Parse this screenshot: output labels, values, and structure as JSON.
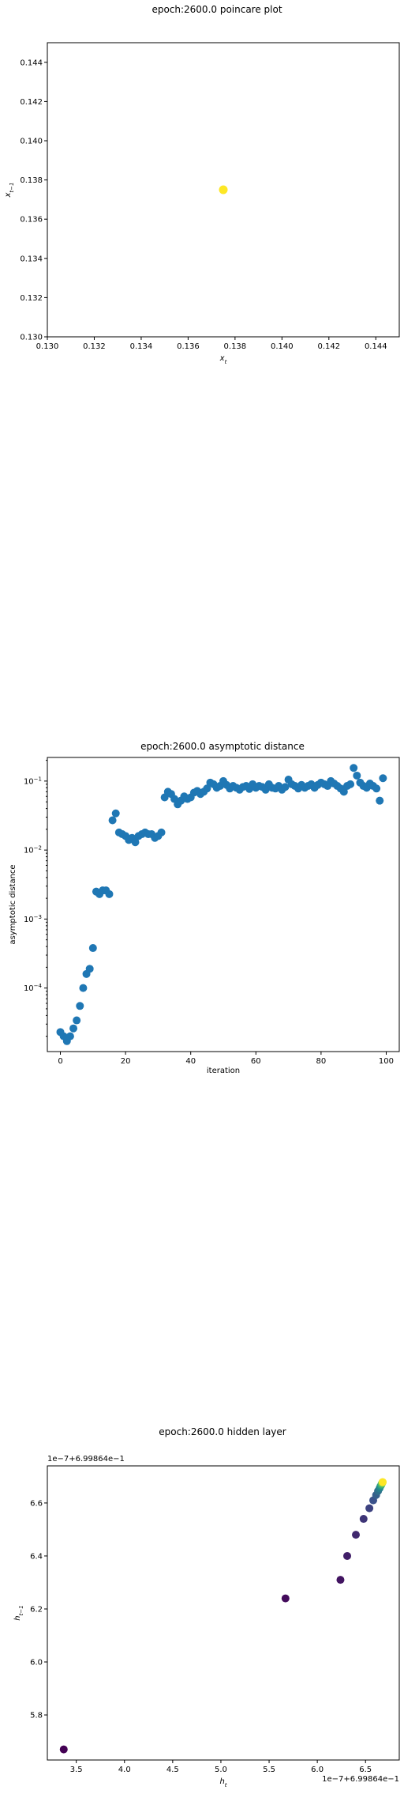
{
  "chart_data": [
    {
      "type": "scatter",
      "title": "epoch:2600.0 poincare plot",
      "xlabel": "x_t",
      "ylabel": "x_{t-1}",
      "xlim": [
        0.13,
        0.145
      ],
      "ylim": [
        0.13,
        0.145
      ],
      "x_ticks": [
        "0.130",
        "0.132",
        "0.134",
        "0.136",
        "0.138",
        "0.140",
        "0.142",
        "0.144"
      ],
      "y_ticks": [
        "0.130",
        "0.132",
        "0.134",
        "0.136",
        "0.138",
        "0.140",
        "0.142",
        "0.144"
      ],
      "points": [
        {
          "x": 0.1375,
          "y": 0.1375
        }
      ],
      "marker_color": "#fde725",
      "grid": false
    },
    {
      "type": "scatter",
      "title": "epoch:2600.0 asymptotic distance",
      "xlabel": "iteration",
      "ylabel": "asymptotic distance",
      "xlim": [
        -4,
        104
      ],
      "ylim": [
        1.2e-05,
        0.22
      ],
      "yscale": "log",
      "x_ticks": [
        "0",
        "20",
        "40",
        "60",
        "80",
        "100"
      ],
      "y_ticks": [
        "10^{-4}",
        "10^{-3}",
        "10^{-2}",
        "10^{-1}"
      ],
      "marker_color": "#1f77b4",
      "x": [
        0,
        1,
        2,
        3,
        4,
        5,
        6,
        7,
        8,
        9,
        10,
        11,
        12,
        13,
        14,
        15,
        16,
        17,
        18,
        19,
        20,
        21,
        22,
        23,
        24,
        25,
        26,
        27,
        28,
        29,
        30,
        31,
        32,
        33,
        34,
        35,
        36,
        37,
        38,
        39,
        40,
        41,
        42,
        43,
        44,
        45,
        46,
        47,
        48,
        49,
        50,
        51,
        52,
        53,
        54,
        55,
        56,
        57,
        58,
        59,
        60,
        61,
        62,
        63,
        64,
        65,
        66,
        67,
        68,
        69,
        70,
        71,
        72,
        73,
        74,
        75,
        76,
        77,
        78,
        79,
        80,
        81,
        82,
        83,
        84,
        85,
        86,
        87,
        88,
        89,
        90,
        91,
        92,
        93,
        94,
        95,
        96,
        97,
        98,
        99
      ],
      "y": [
        2.3e-05,
        2e-05,
        1.7e-05,
        2e-05,
        2.6e-05,
        3.4e-05,
        5.5e-05,
        0.0001,
        0.00016,
        0.00019,
        0.00038,
        0.0025,
        0.0023,
        0.0026,
        0.0026,
        0.0023,
        0.027,
        0.034,
        0.018,
        0.017,
        0.016,
        0.014,
        0.015,
        0.013,
        0.016,
        0.017,
        0.018,
        0.017,
        0.017,
        0.015,
        0.016,
        0.018,
        0.058,
        0.07,
        0.065,
        0.055,
        0.046,
        0.052,
        0.06,
        0.055,
        0.058,
        0.068,
        0.072,
        0.065,
        0.07,
        0.078,
        0.095,
        0.09,
        0.08,
        0.085,
        0.1,
        0.088,
        0.078,
        0.085,
        0.08,
        0.075,
        0.082,
        0.085,
        0.077,
        0.09,
        0.08,
        0.085,
        0.082,
        0.075,
        0.09,
        0.08,
        0.078,
        0.085,
        0.075,
        0.082,
        0.105,
        0.09,
        0.085,
        0.078,
        0.088,
        0.08,
        0.085,
        0.09,
        0.08,
        0.088,
        0.095,
        0.09,
        0.085,
        0.1,
        0.092,
        0.085,
        0.078,
        0.07,
        0.085,
        0.09,
        0.155,
        0.12,
        0.095,
        0.085,
        0.08,
        0.092,
        0.085,
        0.078,
        0.052,
        0.11
      ]
    },
    {
      "type": "scatter",
      "title": "epoch:2600.0 hidden layer",
      "xlabel": "h_t",
      "ylabel": "h_{t-1}",
      "x_offset_text": "1e−7+6.99864e−1",
      "y_offset_text": "1e−7+6.99864e−1",
      "xlim": [
        3.2,
        6.85
      ],
      "ylim": [
        5.63,
        6.74
      ],
      "x_ticks": [
        "3.5",
        "4.0",
        "4.5",
        "5.0",
        "5.5",
        "6.0",
        "6.5"
      ],
      "y_ticks": [
        "5.8",
        "6.0",
        "6.2",
        "6.4",
        "6.6"
      ],
      "colormap": "viridis",
      "points": [
        {
          "x": 3.37,
          "y": 5.67,
          "c": 0.0
        },
        {
          "x": 5.67,
          "y": 6.24,
          "c": 0.03
        },
        {
          "x": 6.24,
          "y": 6.31,
          "c": 0.06
        },
        {
          "x": 6.31,
          "y": 6.4,
          "c": 0.09
        },
        {
          "x": 6.4,
          "y": 6.48,
          "c": 0.12
        },
        {
          "x": 6.48,
          "y": 6.54,
          "c": 0.16
        },
        {
          "x": 6.54,
          "y": 6.58,
          "c": 0.2
        },
        {
          "x": 6.58,
          "y": 6.61,
          "c": 0.25
        },
        {
          "x": 6.61,
          "y": 6.63,
          "c": 0.3
        },
        {
          "x": 6.63,
          "y": 6.645,
          "c": 0.36
        },
        {
          "x": 6.645,
          "y": 6.655,
          "c": 0.42
        },
        {
          "x": 6.655,
          "y": 6.663,
          "c": 0.5
        },
        {
          "x": 6.663,
          "y": 6.668,
          "c": 0.58
        },
        {
          "x": 6.668,
          "y": 6.672,
          "c": 0.66
        },
        {
          "x": 6.672,
          "y": 6.675,
          "c": 0.74
        },
        {
          "x": 6.675,
          "y": 6.677,
          "c": 0.82
        },
        {
          "x": 6.677,
          "y": 6.678,
          "c": 0.9
        },
        {
          "x": 6.678,
          "y": 6.679,
          "c": 1.0
        }
      ]
    }
  ]
}
